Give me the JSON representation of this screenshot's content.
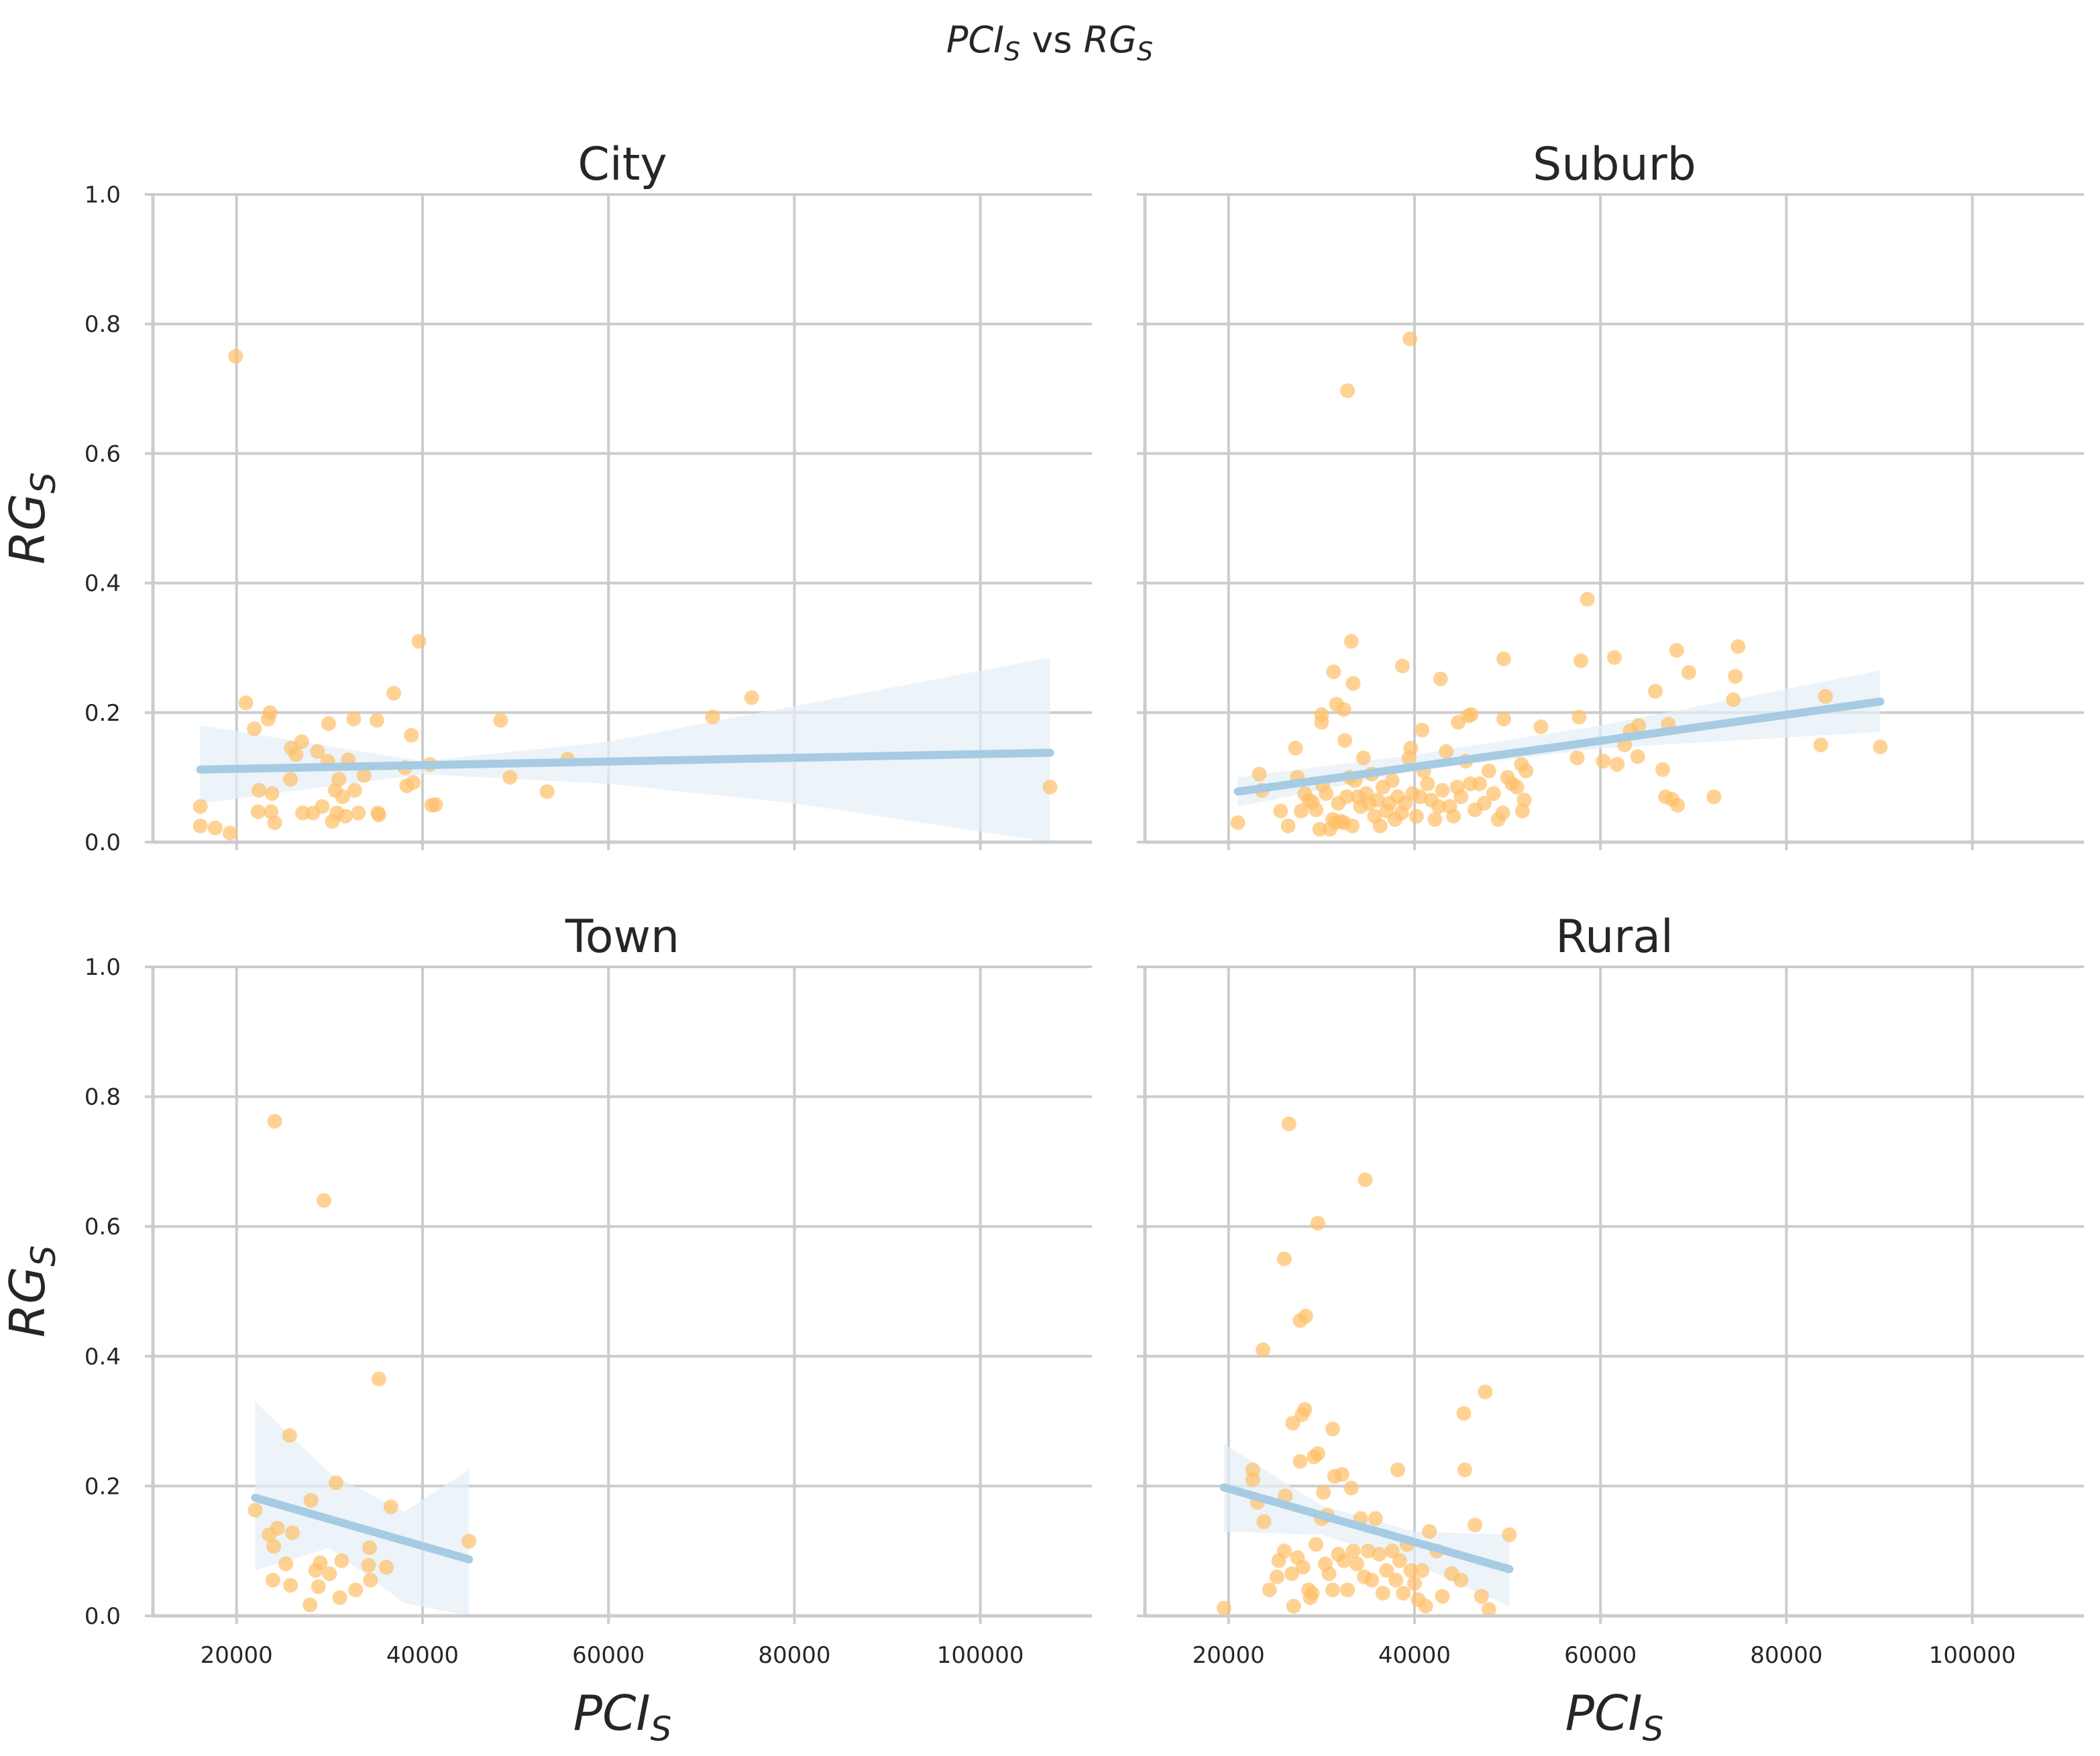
{
  "figure": {
    "suptitle": {
      "left": "PCI",
      "left_sub": "S",
      "mid": " vs ",
      "right": "RG",
      "right_sub": "S"
    },
    "x_axis_label": {
      "main": "PCI",
      "sub": "S"
    },
    "y_axis_label": {
      "main": "RG",
      "sub": "S"
    }
  },
  "colors": {
    "points": "#ffbf66",
    "regression_line": "#a6cbe3",
    "confidence_band": "#e4eef7",
    "grid": "#cccccc",
    "axis": "#cccccc",
    "text": "#262626"
  },
  "chart_data": [
    {
      "type": "scatter",
      "title": "City",
      "xlim": [
        11000,
        112000
      ],
      "ylim": [
        0,
        1.0
      ],
      "x_ticks": [
        20000,
        40000,
        60000,
        80000,
        100000
      ],
      "y_ticks": [
        0.0,
        0.2,
        0.4,
        0.6,
        0.8,
        1.0
      ],
      "grid": true,
      "points": [
        [
          19900,
          0.75
        ],
        [
          16100,
          0.055
        ],
        [
          16100,
          0.025
        ],
        [
          17700,
          0.022
        ],
        [
          19300,
          0.014
        ],
        [
          21000,
          0.215
        ],
        [
          21900,
          0.175
        ],
        [
          22300,
          0.047
        ],
        [
          22400,
          0.08
        ],
        [
          23400,
          0.19
        ],
        [
          23600,
          0.2
        ],
        [
          23700,
          0.047
        ],
        [
          23800,
          0.075
        ],
        [
          24100,
          0.03
        ],
        [
          25800,
          0.097
        ],
        [
          25900,
          0.145
        ],
        [
          26400,
          0.135
        ],
        [
          27000,
          0.155
        ],
        [
          27100,
          0.045
        ],
        [
          28200,
          0.045
        ],
        [
          28700,
          0.14
        ],
        [
          29200,
          0.055
        ],
        [
          29800,
          0.125
        ],
        [
          29900,
          0.183
        ],
        [
          30300,
          0.032
        ],
        [
          30600,
          0.08
        ],
        [
          30800,
          0.045
        ],
        [
          31000,
          0.097
        ],
        [
          31400,
          0.07
        ],
        [
          31700,
          0.04
        ],
        [
          32000,
          0.127
        ],
        [
          32600,
          0.19
        ],
        [
          32700,
          0.08
        ],
        [
          33100,
          0.045
        ],
        [
          33700,
          0.103
        ],
        [
          35100,
          0.188
        ],
        [
          35200,
          0.045
        ],
        [
          35300,
          0.042
        ],
        [
          36900,
          0.23
        ],
        [
          38100,
          0.115
        ],
        [
          38300,
          0.087
        ],
        [
          38800,
          0.165
        ],
        [
          39000,
          0.092
        ],
        [
          39600,
          0.31
        ],
        [
          40800,
          0.12
        ],
        [
          41000,
          0.057
        ],
        [
          41400,
          0.058
        ],
        [
          48400,
          0.188
        ],
        [
          49400,
          0.1
        ],
        [
          53400,
          0.078
        ],
        [
          55600,
          0.128
        ],
        [
          71200,
          0.193
        ],
        [
          75400,
          0.223
        ],
        [
          107500,
          0.085
        ]
      ],
      "regression": {
        "x": [
          16100,
          107500
        ],
        "y": [
          0.112,
          0.138
        ]
      },
      "ci_band": {
        "x": [
          16100,
          40000,
          60000,
          80000,
          107500
        ],
        "upper": [
          0.18,
          0.125,
          0.155,
          0.21,
          0.285
        ],
        "lower": [
          0.06,
          0.105,
          0.09,
          0.06,
          0.0
        ]
      }
    },
    {
      "type": "scatter",
      "title": "Suburb",
      "xlim": [
        11000,
        112000
      ],
      "ylim": [
        0,
        1.0
      ],
      "x_ticks": [
        20000,
        40000,
        60000,
        80000,
        100000
      ],
      "y_ticks": [
        0.0,
        0.2,
        0.4,
        0.6,
        0.8,
        1.0
      ],
      "grid": true,
      "points": [
        [
          39500,
          0.777
        ],
        [
          32800,
          0.697
        ],
        [
          58600,
          0.375
        ],
        [
          33200,
          0.31
        ],
        [
          74800,
          0.302
        ],
        [
          68200,
          0.296
        ],
        [
          49600,
          0.283
        ],
        [
          57900,
          0.28
        ],
        [
          61500,
          0.285
        ],
        [
          38700,
          0.272
        ],
        [
          31300,
          0.263
        ],
        [
          69500,
          0.262
        ],
        [
          74500,
          0.256
        ],
        [
          42800,
          0.252
        ],
        [
          33400,
          0.245
        ],
        [
          65900,
          0.233
        ],
        [
          84200,
          0.225
        ],
        [
          74300,
          0.22
        ],
        [
          31600,
          0.213
        ],
        [
          32400,
          0.205
        ],
        [
          30000,
          0.197
        ],
        [
          46100,
          0.197
        ],
        [
          45800,
          0.195
        ],
        [
          57700,
          0.193
        ],
        [
          49600,
          0.19
        ],
        [
          44700,
          0.185
        ],
        [
          30000,
          0.185
        ],
        [
          67300,
          0.182
        ],
        [
          53600,
          0.178
        ],
        [
          40800,
          0.173
        ],
        [
          64100,
          0.18
        ],
        [
          63200,
          0.172
        ],
        [
          62600,
          0.15
        ],
        [
          83700,
          0.15
        ],
        [
          90100,
          0.147
        ],
        [
          32500,
          0.157
        ],
        [
          23300,
          0.105
        ],
        [
          27200,
          0.145
        ],
        [
          39600,
          0.145
        ],
        [
          57500,
          0.13
        ],
        [
          60300,
          0.125
        ],
        [
          64000,
          0.132
        ],
        [
          61800,
          0.12
        ],
        [
          66700,
          0.112
        ],
        [
          67000,
          0.07
        ],
        [
          67700,
          0.066
        ],
        [
          68300,
          0.057
        ],
        [
          72200,
          0.07
        ],
        [
          21000,
          0.03
        ],
        [
          23600,
          0.08
        ],
        [
          25600,
          0.048
        ],
        [
          26400,
          0.025
        ],
        [
          27400,
          0.1
        ],
        [
          27800,
          0.048
        ],
        [
          28200,
          0.075
        ],
        [
          28600,
          0.065
        ],
        [
          29000,
          0.062
        ],
        [
          29400,
          0.05
        ],
        [
          29800,
          0.02
        ],
        [
          30100,
          0.088
        ],
        [
          30500,
          0.075
        ],
        [
          30900,
          0.02
        ],
        [
          31200,
          0.035
        ],
        [
          31500,
          0.03
        ],
        [
          31800,
          0.06
        ],
        [
          32100,
          0.032
        ],
        [
          32400,
          0.03
        ],
        [
          32700,
          0.07
        ],
        [
          33000,
          0.1
        ],
        [
          33300,
          0.025
        ],
        [
          33600,
          0.095
        ],
        [
          33900,
          0.07
        ],
        [
          34200,
          0.055
        ],
        [
          34500,
          0.13
        ],
        [
          34800,
          0.075
        ],
        [
          35100,
          0.06
        ],
        [
          35400,
          0.105
        ],
        [
          35700,
          0.04
        ],
        [
          36000,
          0.065
        ],
        [
          36300,
          0.025
        ],
        [
          36600,
          0.085
        ],
        [
          37000,
          0.048
        ],
        [
          37300,
          0.06
        ],
        [
          37600,
          0.095
        ],
        [
          37900,
          0.035
        ],
        [
          38200,
          0.07
        ],
        [
          38600,
          0.045
        ],
        [
          39000,
          0.06
        ],
        [
          39400,
          0.13
        ],
        [
          39800,
          0.075
        ],
        [
          40200,
          0.04
        ],
        [
          40600,
          0.07
        ],
        [
          41000,
          0.11
        ],
        [
          41400,
          0.09
        ],
        [
          41800,
          0.065
        ],
        [
          42200,
          0.035
        ],
        [
          42600,
          0.055
        ],
        [
          43000,
          0.08
        ],
        [
          43400,
          0.14
        ],
        [
          43800,
          0.055
        ],
        [
          44200,
          0.04
        ],
        [
          44600,
          0.085
        ],
        [
          45000,
          0.07
        ],
        [
          45500,
          0.125
        ],
        [
          46000,
          0.09
        ],
        [
          46500,
          0.05
        ],
        [
          47000,
          0.09
        ],
        [
          47500,
          0.06
        ],
        [
          48000,
          0.11
        ],
        [
          48500,
          0.075
        ],
        [
          49000,
          0.035
        ],
        [
          49500,
          0.045
        ],
        [
          50000,
          0.1
        ],
        [
          50500,
          0.09
        ],
        [
          51000,
          0.085
        ],
        [
          51500,
          0.12
        ],
        [
          52000,
          0.11
        ],
        [
          51800,
          0.065
        ],
        [
          51600,
          0.048
        ]
      ],
      "regression": {
        "x": [
          21000,
          90100
        ],
        "y": [
          0.078,
          0.217
        ]
      },
      "ci_band": {
        "x": [
          21000,
          40000,
          60000,
          90100
        ],
        "upper": [
          0.1,
          0.135,
          0.18,
          0.265
        ],
        "lower": [
          0.055,
          0.11,
          0.145,
          0.17
        ]
      }
    },
    {
      "type": "scatter",
      "title": "Town",
      "xlim": [
        11000,
        112000
      ],
      "ylim": [
        0,
        1.0
      ],
      "x_ticks": [
        20000,
        40000,
        60000,
        80000,
        100000
      ],
      "y_ticks": [
        0.0,
        0.2,
        0.4,
        0.6,
        0.8,
        1.0
      ],
      "grid": true,
      "points": [
        [
          24100,
          0.762
        ],
        [
          29400,
          0.64
        ],
        [
          35300,
          0.365
        ],
        [
          25700,
          0.278
        ],
        [
          30700,
          0.205
        ],
        [
          22000,
          0.163
        ],
        [
          28000,
          0.178
        ],
        [
          36600,
          0.168
        ],
        [
          23500,
          0.125
        ],
        [
          24400,
          0.135
        ],
        [
          26000,
          0.128
        ],
        [
          24000,
          0.107
        ],
        [
          34300,
          0.105
        ],
        [
          45000,
          0.115
        ],
        [
          25300,
          0.08
        ],
        [
          28500,
          0.07
        ],
        [
          29000,
          0.082
        ],
        [
          30000,
          0.065
        ],
        [
          31300,
          0.085
        ],
        [
          34200,
          0.078
        ],
        [
          36100,
          0.075
        ],
        [
          23900,
          0.055
        ],
        [
          25800,
          0.047
        ],
        [
          28800,
          0.045
        ],
        [
          31100,
          0.028
        ],
        [
          32800,
          0.04
        ],
        [
          34400,
          0.055
        ],
        [
          27900,
          0.017
        ]
      ],
      "regression": {
        "x": [
          22000,
          45000
        ],
        "y": [
          0.182,
          0.087
        ]
      },
      "ci_band": {
        "x": [
          22000,
          30000,
          38000,
          45000
        ],
        "upper": [
          0.33,
          0.22,
          0.16,
          0.225
        ],
        "lower": [
          0.07,
          0.105,
          0.02,
          -0.04
        ]
      }
    },
    {
      "type": "scatter",
      "title": "Rural",
      "xlim": [
        11000,
        112000
      ],
      "ylim": [
        0,
        1.0
      ],
      "x_ticks": [
        20000,
        40000,
        60000,
        80000,
        100000
      ],
      "y_ticks": [
        0.0,
        0.2,
        0.4,
        0.6,
        0.8,
        1.0
      ],
      "grid": true,
      "points": [
        [
          26500,
          0.758
        ],
        [
          34700,
          0.672
        ],
        [
          29600,
          0.605
        ],
        [
          26000,
          0.55
        ],
        [
          28300,
          0.462
        ],
        [
          27700,
          0.455
        ],
        [
          23700,
          0.41
        ],
        [
          47600,
          0.345
        ],
        [
          28200,
          0.318
        ],
        [
          27900,
          0.31
        ],
        [
          45300,
          0.312
        ],
        [
          26900,
          0.297
        ],
        [
          31200,
          0.288
        ],
        [
          29600,
          0.25
        ],
        [
          29200,
          0.245
        ],
        [
          27700,
          0.238
        ],
        [
          38200,
          0.225
        ],
        [
          45400,
          0.225
        ],
        [
          22600,
          0.225
        ],
        [
          31400,
          0.215
        ],
        [
          32200,
          0.218
        ],
        [
          22600,
          0.21
        ],
        [
          33200,
          0.197
        ],
        [
          30200,
          0.19
        ],
        [
          26100,
          0.185
        ],
        [
          23100,
          0.175
        ],
        [
          19500,
          0.012
        ],
        [
          23800,
          0.145
        ],
        [
          25400,
          0.085
        ],
        [
          26000,
          0.1
        ],
        [
          26800,
          0.065
        ],
        [
          27400,
          0.09
        ],
        [
          28000,
          0.075
        ],
        [
          28600,
          0.04
        ],
        [
          29000,
          0.035
        ],
        [
          29400,
          0.11
        ],
        [
          30000,
          0.15
        ],
        [
          30400,
          0.08
        ],
        [
          30800,
          0.065
        ],
        [
          31200,
          0.04
        ],
        [
          31800,
          0.095
        ],
        [
          32400,
          0.085
        ],
        [
          32800,
          0.04
        ],
        [
          33400,
          0.1
        ],
        [
          33800,
          0.08
        ],
        [
          34200,
          0.15
        ],
        [
          34600,
          0.06
        ],
        [
          35000,
          0.1
        ],
        [
          35400,
          0.055
        ],
        [
          35800,
          0.15
        ],
        [
          36200,
          0.095
        ],
        [
          36600,
          0.035
        ],
        [
          37000,
          0.07
        ],
        [
          37600,
          0.1
        ],
        [
          38000,
          0.055
        ],
        [
          38400,
          0.085
        ],
        [
          38800,
          0.035
        ],
        [
          39200,
          0.11
        ],
        [
          39600,
          0.07
        ],
        [
          40000,
          0.05
        ],
        [
          40400,
          0.025
        ],
        [
          40800,
          0.07
        ],
        [
          41200,
          0.015
        ],
        [
          41600,
          0.13
        ],
        [
          42400,
          0.1
        ],
        [
          43000,
          0.03
        ],
        [
          44000,
          0.065
        ],
        [
          45000,
          0.055
        ],
        [
          46500,
          0.14
        ],
        [
          47200,
          0.03
        ],
        [
          48000,
          0.01
        ],
        [
          50200,
          0.125
        ],
        [
          24400,
          0.04
        ],
        [
          25200,
          0.06
        ],
        [
          27000,
          0.015
        ],
        [
          28800,
          0.028
        ],
        [
          30600,
          0.155
        ]
      ],
      "regression": {
        "x": [
          19500,
          50200
        ],
        "y": [
          0.198,
          0.072
        ]
      },
      "ci_band": {
        "x": [
          19500,
          30000,
          40000,
          50200
        ],
        "upper": [
          0.265,
          0.17,
          0.13,
          0.125
        ],
        "lower": [
          0.13,
          0.125,
          0.08,
          0.015
        ]
      }
    }
  ]
}
